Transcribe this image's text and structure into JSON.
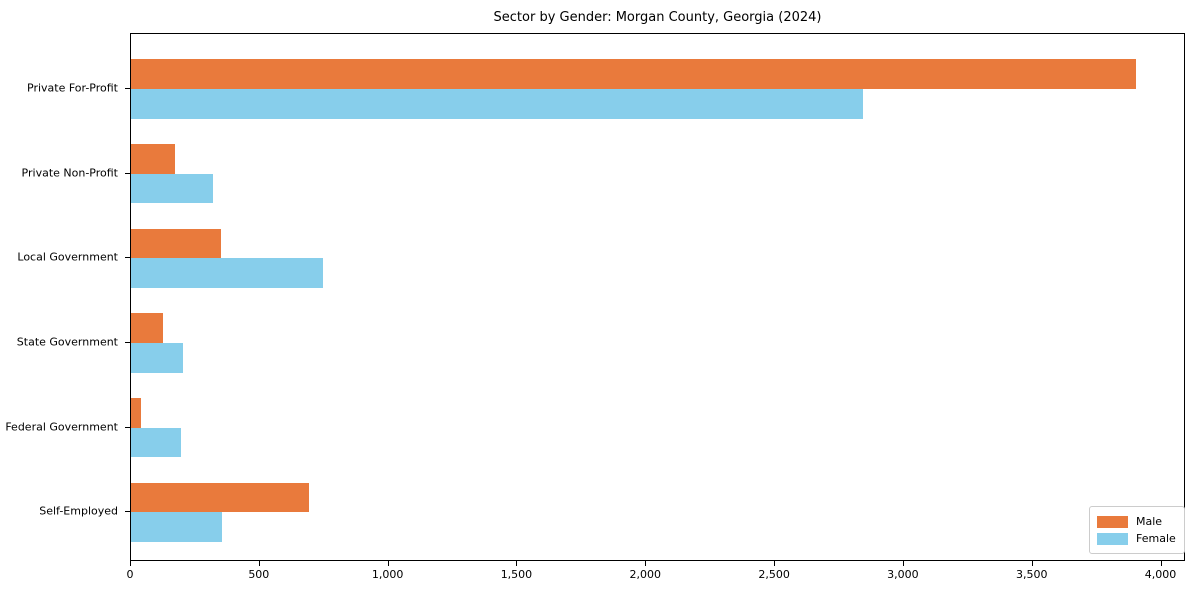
{
  "title": "Sector by Gender: Morgan County, Georgia (2024)",
  "colors": {
    "male": "#E97A3C",
    "female": "#87CEEB",
    "axis": "#000000",
    "legend_border": "#cccccc",
    "background": "#ffffff"
  },
  "chart_data": {
    "type": "bar",
    "orientation": "horizontal",
    "title": "Sector by Gender: Morgan County, Georgia (2024)",
    "xlabel": "",
    "ylabel": "",
    "categories": [
      "Private For-Profit",
      "Private Non-Profit",
      "Local Government",
      "State Government",
      "Federal Government",
      "Self-Employed"
    ],
    "series": [
      {
        "name": "Male",
        "color": "#E97A3C",
        "values": [
          3900,
          170,
          350,
          125,
          40,
          690
        ]
      },
      {
        "name": "Female",
        "color": "#87CEEB",
        "values": [
          2840,
          320,
          745,
          200,
          195,
          355
        ]
      }
    ],
    "xlim": [
      0,
      4095
    ],
    "x_ticks": [
      0,
      500,
      1000,
      1500,
      2000,
      2500,
      3000,
      3500,
      4000
    ],
    "x_tick_labels": [
      "0",
      "500",
      "1,000",
      "1,500",
      "2,000",
      "2,500",
      "3,000",
      "3,500",
      "4,000"
    ],
    "grid": false,
    "legend_position": "lower right"
  },
  "legend": {
    "items": [
      {
        "label": "Male",
        "color": "#E97A3C"
      },
      {
        "label": "Female",
        "color": "#87CEEB"
      }
    ]
  }
}
